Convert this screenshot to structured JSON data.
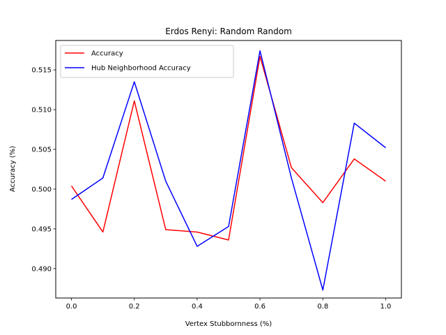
{
  "chart_data": {
    "type": "line",
    "title": "Erdos Renyi: Random Random",
    "xlabel": "Vertex Stubbornness (%)",
    "ylabel": "Accuracy (%)",
    "x": [
      0.0,
      0.1,
      0.2,
      0.3,
      0.4,
      0.5,
      0.6,
      0.7,
      0.8,
      0.9,
      1.0
    ],
    "xlim": [
      -0.05,
      1.05
    ],
    "ylim": [
      0.4863,
      0.5187
    ],
    "xticks": [
      0.0,
      0.2,
      0.4,
      0.6,
      0.8,
      1.0
    ],
    "xtick_labels": [
      "0.0",
      "0.2",
      "0.4",
      "0.6",
      "0.8",
      "1.0"
    ],
    "yticks": [
      0.49,
      0.495,
      0.5,
      0.505,
      0.51,
      0.515
    ],
    "ytick_labels": [
      "0.490",
      "0.495",
      "0.500",
      "0.505",
      "0.510",
      "0.515"
    ],
    "grid": false,
    "legend_position": "upper-left",
    "series": [
      {
        "name": "Accuracy",
        "color": "#ff0000",
        "values": [
          0.5004,
          0.4946,
          0.5111,
          0.4949,
          0.4946,
          0.4936,
          0.5167,
          0.5027,
          0.4983,
          0.5038,
          0.501
        ]
      },
      {
        "name": "Hub Neighborhood Accuracy",
        "color": "#0000ff",
        "values": [
          0.4987,
          0.5014,
          0.5135,
          0.501,
          0.4928,
          0.4953,
          0.5174,
          0.5014,
          0.4873,
          0.5083,
          0.5052
        ]
      }
    ]
  }
}
